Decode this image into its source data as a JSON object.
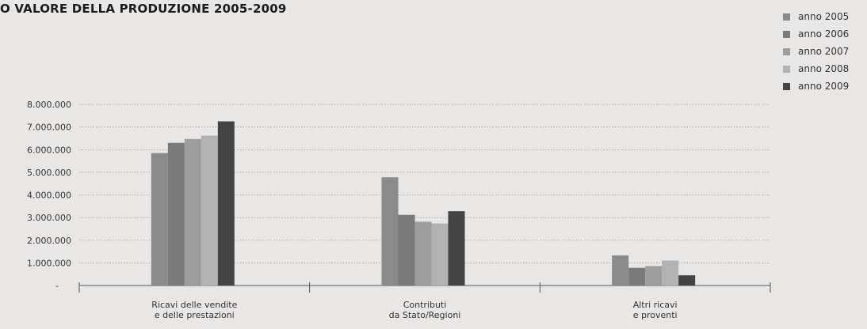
{
  "title": "O VALORE DELLA PRODUZIONE 2005-2009",
  "colors": {
    "background": "#e9e7e6",
    "grid": "#9a9a9a",
    "axis": "#555555"
  },
  "chart_data": {
    "type": "bar",
    "title": "O VALORE DELLA PRODUZIONE 2005-2009",
    "categories": [
      [
        "Ricavi delle vendite",
        "e delle prestazioni"
      ],
      [
        "Contributi",
        "da Stato/Regioni"
      ],
      [
        "Altri ricavi",
        "e proventi"
      ]
    ],
    "series": [
      {
        "name": "anno 2005",
        "color": "#8a8a8a",
        "values": [
          5850000,
          4780000,
          1330000
        ]
      },
      {
        "name": "anno 2006",
        "color": "#7a7a7a",
        "values": [
          6300000,
          3120000,
          780000
        ]
      },
      {
        "name": "anno 2007",
        "color": "#9d9d9d",
        "values": [
          6470000,
          2820000,
          860000
        ]
      },
      {
        "name": "anno 2008",
        "color": "#b2b2b2",
        "values": [
          6620000,
          2740000,
          1100000
        ]
      },
      {
        "name": "anno 2009",
        "color": "#444444",
        "values": [
          7250000,
          3280000,
          450000
        ]
      }
    ],
    "yticks": [
      {
        "value": 0,
        "label": "-"
      },
      {
        "value": 1000000,
        "label": "1.000.000"
      },
      {
        "value": 2000000,
        "label": "2.000.000"
      },
      {
        "value": 3000000,
        "label": "3.000.000"
      },
      {
        "value": 4000000,
        "label": "4.000.000"
      },
      {
        "value": 5000000,
        "label": "5.000.000"
      },
      {
        "value": 6000000,
        "label": "6.000.000"
      },
      {
        "value": 7000000,
        "label": "7.000.000"
      },
      {
        "value": 8000000,
        "label": "8.000.000"
      }
    ],
    "ylim": [
      0,
      8000000
    ],
    "grid": "dotted horizontal",
    "legend_position": "top-right"
  }
}
